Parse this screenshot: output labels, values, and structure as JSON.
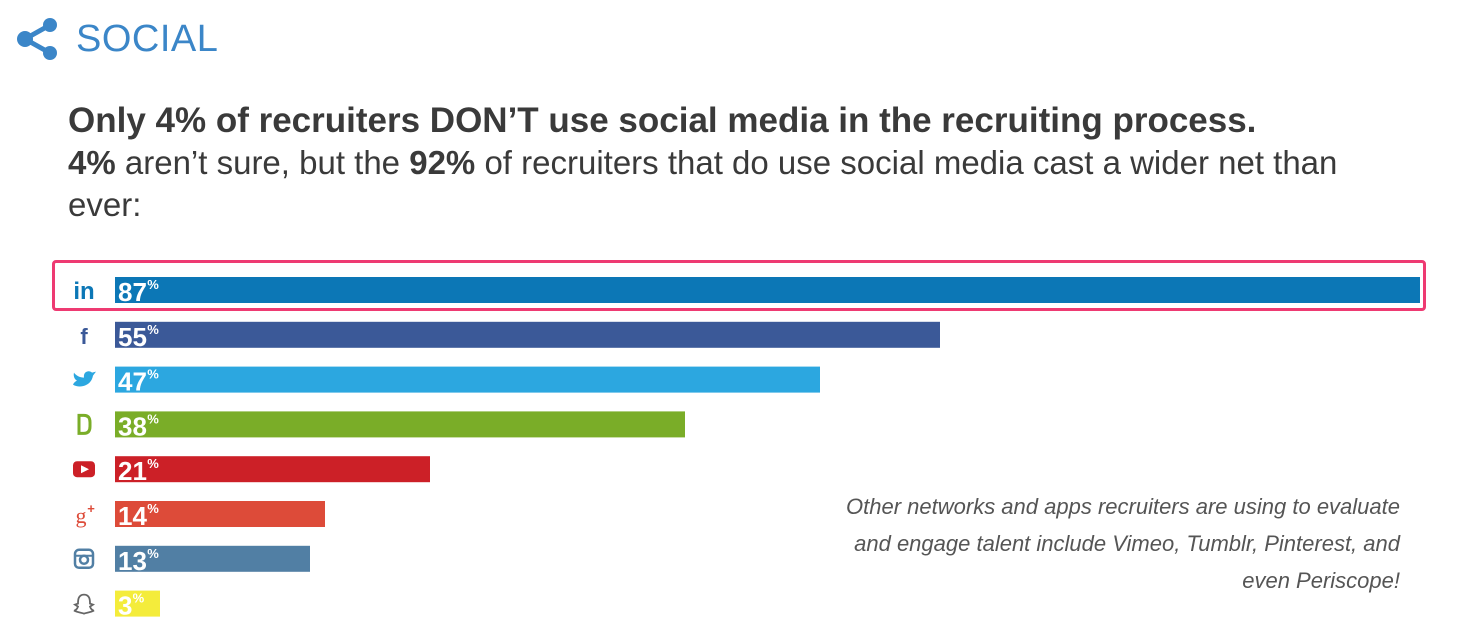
{
  "header": {
    "title": "SOCIAL",
    "icon": "share-icon",
    "color": "#3b86c8"
  },
  "headline": {
    "line1": "Only 4% of recruiters DON’T use social media in the recruiting process.",
    "line2_a": "4%",
    "line2_b": " aren’t sure, but the ",
    "line2_c": "92%",
    "line2_d": " of recruiters that do use social media cast a wider net than ever:"
  },
  "chart_data": {
    "type": "bar",
    "orientation": "horizontal",
    "categories": [
      "linkedin-icon",
      "facebook-icon",
      "twitter-icon",
      "glassdoor-icon",
      "youtube-icon",
      "google-plus-icon",
      "instagram-icon",
      "snapchat-icon"
    ],
    "values": [
      87,
      55,
      47,
      38,
      21,
      14,
      13,
      3
    ],
    "value_suffix": "%",
    "colors": [
      "#0c77b6",
      "#3b5998",
      "#2ca7e0",
      "#7aad28",
      "#cc2027",
      "#dd4b39",
      "#517fa4",
      "#f4ec3b"
    ],
    "xlim": [
      0,
      87
    ],
    "highlighted_category": "linkedin-icon"
  },
  "note": "Other networks and apps recruiters are using to evaluate and engage talent include Vimeo, Tumblr, Pinterest, and even Periscope!"
}
